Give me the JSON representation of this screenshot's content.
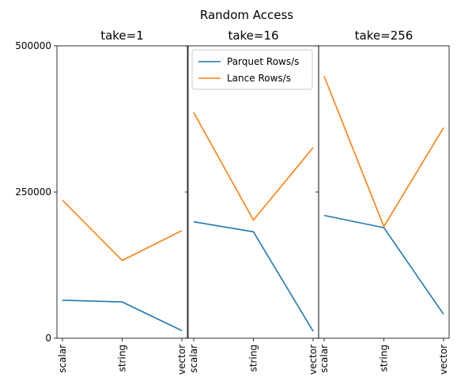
{
  "chart_data": {
    "type": "line",
    "title": "Random Access",
    "categories": [
      "scalar",
      "string",
      "vector"
    ],
    "ylim": [
      0,
      500000
    ],
    "yticks": [
      "0",
      "250000",
      "500000"
    ],
    "grid": false,
    "legend_placement": "top-left of middle panel",
    "colors": {
      "Parquet Rows/s": "#1f77b4",
      "Lance Rows/s": "#ff7f0e"
    },
    "panels": [
      {
        "title": "take=1",
        "series": [
          {
            "name": "Parquet Rows/s",
            "values": [
              65000,
              62000,
              13000
            ]
          },
          {
            "name": "Lance Rows/s",
            "values": [
              236000,
              133000,
              184000
            ]
          }
        ]
      },
      {
        "title": "take=16",
        "series": [
          {
            "name": "Parquet Rows/s",
            "values": [
              199000,
              182000,
              12000
            ]
          },
          {
            "name": "Lance Rows/s",
            "values": [
              386000,
              202000,
              326000
            ]
          }
        ]
      },
      {
        "title": "take=256",
        "series": [
          {
            "name": "Parquet Rows/s",
            "values": [
              210000,
              189000,
              41000
            ]
          },
          {
            "name": "Lance Rows/s",
            "values": [
              448000,
              191000,
              360000
            ]
          }
        ]
      }
    ],
    "legend": [
      "Parquet Rows/s",
      "Lance Rows/s"
    ]
  }
}
